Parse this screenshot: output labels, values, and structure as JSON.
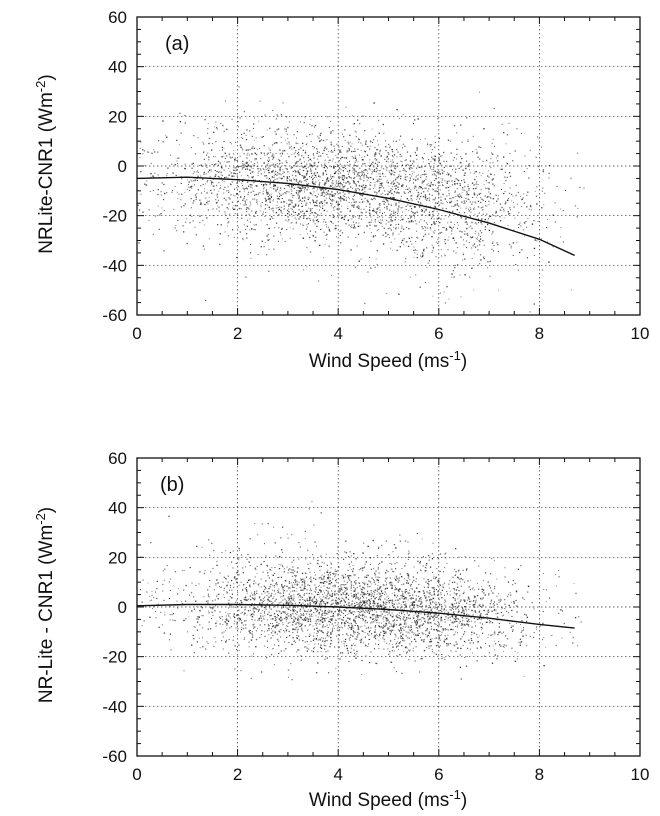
{
  "chart_data": [
    {
      "type": "scatter",
      "panel_label": "(a)",
      "xlabel": "Wind Speed (ms",
      "xlabel_sup": "-1",
      "xlabel_end": ")",
      "ylabel": "NRLite-CNR1 (Wm",
      "ylabel_sup": "-2",
      "ylabel_end": ")",
      "xlim": [
        0,
        10
      ],
      "ylim": [
        -60,
        60
      ],
      "x_ticks": [
        "0",
        "2",
        "4",
        "6",
        "8",
        "10"
      ],
      "y_ticks": [
        "-60",
        "-40",
        "-20",
        "0",
        "20",
        "40",
        "60"
      ],
      "grid": true,
      "fit_curve": {
        "x": [
          0,
          1,
          2,
          3,
          4,
          5,
          6,
          7,
          8,
          8.7
        ],
        "y": [
          -5,
          -4.5,
          -5.5,
          -7,
          -9.5,
          -13,
          -17.5,
          -23,
          -29.5,
          -36
        ]
      },
      "scatter_clusters": [
        {
          "x": 4.0,
          "y": -8,
          "sx": 1.7,
          "sy": 11,
          "n": 2200
        },
        {
          "x": 2.5,
          "y": -3,
          "sx": 1.2,
          "sy": 12,
          "n": 500
        },
        {
          "x": 6.3,
          "y": -20,
          "sx": 1.0,
          "sy": 12,
          "n": 600
        }
      ]
    },
    {
      "type": "scatter",
      "panel_label": "(b)",
      "xlabel": "Wind Speed (ms",
      "xlabel_sup": "-1",
      "xlabel_end": ")",
      "ylabel": "NR-Lite - CNR1 (Wm",
      "ylabel_sup": "-2",
      "ylabel_end": ")",
      "xlim": [
        0,
        10
      ],
      "ylim": [
        -60,
        60
      ],
      "x_ticks": [
        "0",
        "2",
        "4",
        "6",
        "8",
        "10"
      ],
      "y_ticks": [
        "-60",
        "-40",
        "-20",
        "0",
        "20",
        "40",
        "60"
      ],
      "grid": true,
      "fit_curve": {
        "x": [
          0,
          1,
          2,
          3,
          4,
          5,
          6,
          7,
          8,
          8.7
        ],
        "y": [
          0.5,
          1,
          1,
          0.7,
          0,
          -1,
          -2.5,
          -4.5,
          -7,
          -8.5
        ]
      },
      "scatter_clusters": [
        {
          "x": 4.2,
          "y": -1,
          "sx": 1.6,
          "sy": 9,
          "n": 2400
        },
        {
          "x": 3.5,
          "y": 8,
          "sx": 1.5,
          "sy": 11,
          "n": 500
        },
        {
          "x": 6.2,
          "y": -4,
          "sx": 1.0,
          "sy": 8,
          "n": 500
        }
      ]
    }
  ]
}
